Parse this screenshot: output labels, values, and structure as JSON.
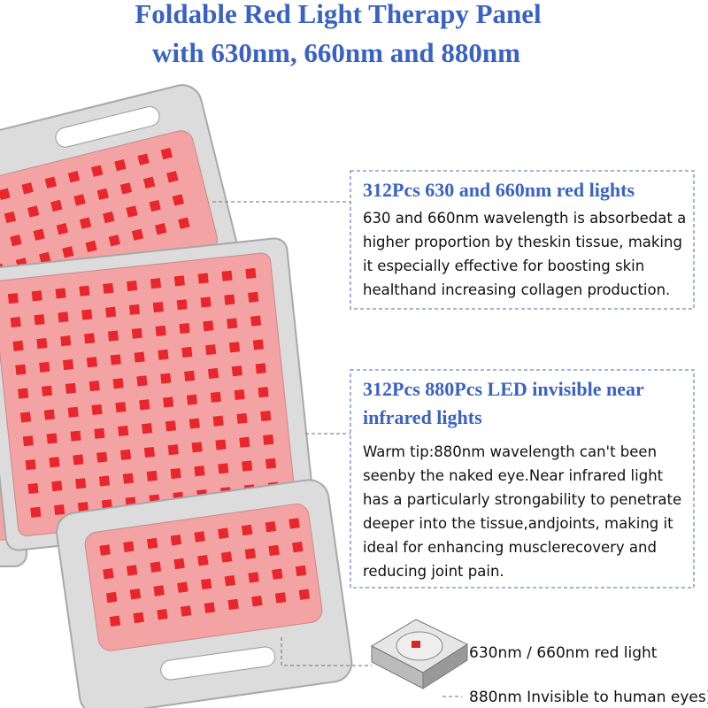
{
  "title": {
    "lines": [
      "Foldable Red Light Therapy Panel",
      "with 630nm, 660nm and 880nm"
    ]
  },
  "feature_1": {
    "heading": [
      "312Pcs 630 and 660nm red lights"
    ],
    "body": [
      "630 and 660nm wavelength is absorbedat a",
      "higher proportion by theskin tissue, making",
      "it especially effective for boosting skin",
      "healthand increasing collagen production."
    ]
  },
  "feature_2": {
    "heading": [
      "312Pcs 880Pcs LED invisible near",
      "infrared lights"
    ],
    "body": [
      "Warm tip:880nm wavelength can't been",
      "seenby the naked eye.Near infrared light",
      "has a particularly strongability to penetrate",
      "deeper into the tissue,andjoints, making it",
      "ideal for enhancing musclerecovery and",
      "reducing joint pain."
    ]
  },
  "legend": {
    "items": [
      "630nm / 660nm red light",
      "880nm Invisible to human eyes)"
    ]
  }
}
